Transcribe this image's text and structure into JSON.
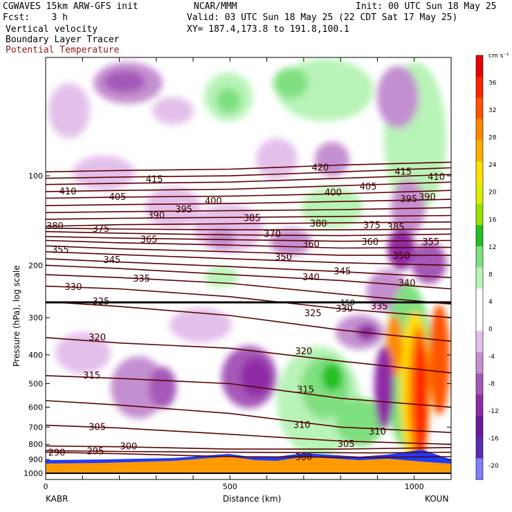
{
  "header": {
    "model": "CGWAVES 15km ARW-GFS init",
    "fcst": "Fcst:    3 h",
    "center": "NCAR/MMM",
    "init": "Init: 00 UTC Sun 18 May 25",
    "valid": "Valid: 03 UTC Sun 18 May 25 (22 CDT Sat 17 May 25)",
    "xy": "XY= 187.4,173.8 to 191.8,100.1",
    "field1": "Vertical velocity",
    "field2": "Boundary Layer Tracer",
    "field3": "Potential Temperature"
  },
  "colorbar": {
    "units": "cm s⁻¹",
    "levels": [
      -20,
      -16,
      -12,
      -8,
      -4,
      0,
      4,
      8,
      12,
      16,
      20,
      24,
      28,
      32,
      36
    ],
    "colors": [
      "#7f7fff",
      "#5a2bb0",
      "#6a1b9a",
      "#8e2aa5",
      "#a458b8",
      "#c48fd0",
      "#e3c0ea",
      "#ffffff",
      "#ffffff",
      "#b8f3b8",
      "#7fe07f",
      "#22c022",
      "#9ae000",
      "#dcee00",
      "#ffe000",
      "#ffb000",
      "#ff8800",
      "#ff5500",
      "#ff2200",
      "#e80000"
    ]
  },
  "colors": {
    "theta_line": "#5a0000",
    "terrain": "#ff9a00",
    "tracer": "#1e3cff",
    "ground": "#000000"
  },
  "chart_data": {
    "type": "heatmap",
    "title": "",
    "xlabel": "Distance (km)",
    "ylabel": "Pressure (hPa), log scale",
    "xlim": [
      0,
      1100
    ],
    "ylim": [
      1050,
      40
    ],
    "y_scale": "log",
    "x_ticks": [
      0,
      500,
      1000
    ],
    "y_ticks": [
      100,
      200,
      300,
      400,
      500,
      600,
      700,
      800,
      900,
      1000
    ],
    "x_endpoint_labels": [
      "KABR",
      "KOUN"
    ],
    "horizontal_marker_label": "150",
    "theta_contours": [
      {
        "label": 290,
        "points": [
          [
            0,
            850
          ],
          [
            200,
            860
          ],
          [
            500,
            880
          ],
          [
            900,
            885
          ],
          [
            1100,
            880
          ]
        ]
      },
      {
        "label": 295,
        "points": [
          [
            0,
            840
          ],
          [
            200,
            845
          ],
          [
            500,
            850
          ],
          [
            900,
            855
          ],
          [
            1100,
            850
          ]
        ]
      },
      {
        "label": 300,
        "points": [
          [
            0,
            810
          ],
          [
            200,
            815
          ],
          [
            500,
            830
          ],
          [
            800,
            830
          ],
          [
            1100,
            820
          ]
        ]
      },
      {
        "label": 305,
        "points": [
          [
            0,
            690
          ],
          [
            200,
            705
          ],
          [
            500,
            740
          ],
          [
            800,
            780
          ],
          [
            1100,
            800
          ]
        ]
      },
      {
        "label": 310,
        "points": [
          [
            0,
            570
          ],
          [
            200,
            590
          ],
          [
            500,
            630
          ],
          [
            800,
            700
          ],
          [
            1100,
            730
          ]
        ]
      },
      {
        "label": 315,
        "points": [
          [
            0,
            470
          ],
          [
            200,
            480
          ],
          [
            500,
            500
          ],
          [
            800,
            560
          ],
          [
            1100,
            600
          ]
        ]
      },
      {
        "label": 320,
        "points": [
          [
            0,
            350
          ],
          [
            200,
            365
          ],
          [
            500,
            380
          ],
          [
            800,
            420
          ],
          [
            1100,
            460
          ]
        ]
      },
      {
        "label": 325,
        "points": [
          [
            0,
            265
          ],
          [
            200,
            275
          ],
          [
            500,
            295
          ],
          [
            800,
            330
          ],
          [
            1100,
            360
          ]
        ]
      },
      {
        "label": 330,
        "points": [
          [
            0,
            235
          ],
          [
            200,
            240
          ],
          [
            500,
            255
          ],
          [
            800,
            280
          ],
          [
            1100,
            300
          ]
        ]
      },
      {
        "label": 335,
        "points": [
          [
            0,
            215
          ],
          [
            200,
            220
          ],
          [
            500,
            230
          ],
          [
            800,
            250
          ],
          [
            1100,
            270
          ]
        ]
      },
      {
        "label": 340,
        "points": [
          [
            0,
            200
          ],
          [
            200,
            205
          ],
          [
            500,
            215
          ],
          [
            800,
            225
          ],
          [
            1100,
            240
          ]
        ]
      },
      {
        "label": 345,
        "points": [
          [
            0,
            190
          ],
          [
            200,
            195
          ],
          [
            500,
            202
          ],
          [
            800,
            210
          ],
          [
            1100,
            220
          ]
        ]
      },
      {
        "label": 350,
        "points": [
          [
            0,
            180
          ],
          [
            200,
            184
          ],
          [
            500,
            190
          ],
          [
            800,
            196
          ],
          [
            1100,
            200
          ]
        ]
      },
      {
        "label": 355,
        "points": [
          [
            0,
            172
          ],
          [
            200,
            176
          ],
          [
            500,
            180
          ],
          [
            800,
            185
          ],
          [
            1100,
            185
          ]
        ]
      },
      {
        "label": 360,
        "points": [
          [
            0,
            165
          ],
          [
            200,
            168
          ],
          [
            500,
            171
          ],
          [
            800,
            175
          ],
          [
            1100,
            174
          ]
        ]
      },
      {
        "label": 365,
        "points": [
          [
            0,
            160
          ],
          [
            200,
            162
          ],
          [
            500,
            164
          ],
          [
            800,
            166
          ],
          [
            1100,
            165
          ]
        ]
      },
      {
        "label": 370,
        "points": [
          [
            0,
            154
          ],
          [
            200,
            156
          ],
          [
            500,
            158
          ],
          [
            800,
            159
          ],
          [
            1100,
            157
          ]
        ]
      },
      {
        "label": 375,
        "points": [
          [
            0,
            150
          ],
          [
            200,
            151
          ],
          [
            500,
            152
          ],
          [
            800,
            152
          ],
          [
            1100,
            151
          ]
        ]
      },
      {
        "label": 380,
        "points": [
          [
            0,
            148
          ],
          [
            200,
            146
          ],
          [
            500,
            145
          ],
          [
            800,
            144
          ],
          [
            1100,
            143
          ]
        ]
      },
      {
        "label": 385,
        "points": [
          [
            0,
            140
          ],
          [
            200,
            139
          ],
          [
            500,
            138
          ],
          [
            800,
            137
          ],
          [
            1100,
            136
          ]
        ]
      },
      {
        "label": 390,
        "points": [
          [
            0,
            133
          ],
          [
            200,
            132
          ],
          [
            500,
            131
          ],
          [
            800,
            130
          ],
          [
            1100,
            128
          ]
        ]
      },
      {
        "label": 395,
        "points": [
          [
            0,
            126
          ],
          [
            200,
            125
          ],
          [
            500,
            124
          ],
          [
            800,
            122
          ],
          [
            1100,
            120
          ]
        ]
      },
      {
        "label": 400,
        "points": [
          [
            0,
            119
          ],
          [
            200,
            118
          ],
          [
            500,
            117
          ],
          [
            800,
            115
          ],
          [
            1100,
            112
          ]
        ]
      },
      {
        "label": 405,
        "points": [
          [
            0,
            113
          ],
          [
            200,
            112
          ],
          [
            500,
            111
          ],
          [
            800,
            108
          ],
          [
            1100,
            105
          ]
        ]
      },
      {
        "label": 410,
        "points": [
          [
            0,
            107
          ],
          [
            200,
            106
          ],
          [
            500,
            105
          ],
          [
            800,
            102
          ],
          [
            1100,
            99
          ]
        ]
      },
      {
        "label": 415,
        "points": [
          [
            0,
            102
          ],
          [
            200,
            101
          ],
          [
            500,
            100
          ],
          [
            800,
            97
          ],
          [
            1100,
            94
          ]
        ]
      },
      {
        "label": 420,
        "points": [
          [
            0,
            97
          ],
          [
            200,
            96
          ],
          [
            500,
            95
          ],
          [
            800,
            92
          ],
          [
            1100,
            90
          ]
        ]
      }
    ],
    "theta_label_positions": [
      {
        "text": "290",
        "x": 30,
        "p": 855
      },
      {
        "text": "295",
        "x": 135,
        "p": 845
      },
      {
        "text": "300",
        "x": 225,
        "p": 815
      },
      {
        "text": "300",
        "x": 700,
        "p": 885
      },
      {
        "text": "305",
        "x": 140,
        "p": 700
      },
      {
        "text": "305",
        "x": 815,
        "p": 800
      },
      {
        "text": "310",
        "x": 695,
        "p": 690
      },
      {
        "text": "310",
        "x": 900,
        "p": 725
      },
      {
        "text": "315",
        "x": 125,
        "p": 470
      },
      {
        "text": "315",
        "x": 705,
        "p": 525
      },
      {
        "text": "320",
        "x": 140,
        "p": 350
      },
      {
        "text": "320",
        "x": 700,
        "p": 390
      },
      {
        "text": "325",
        "x": 150,
        "p": 265
      },
      {
        "text": "325",
        "x": 725,
        "p": 290
      },
      {
        "text": "330",
        "x": 75,
        "p": 237
      },
      {
        "text": "330",
        "x": 810,
        "p": 280
      },
      {
        "text": "335",
        "x": 260,
        "p": 222
      },
      {
        "text": "335",
        "x": 905,
        "p": 275
      },
      {
        "text": "340",
        "x": 720,
        "p": 220
      },
      {
        "text": "340",
        "x": 980,
        "p": 230
      },
      {
        "text": "345",
        "x": 180,
        "p": 192
      },
      {
        "text": "345",
        "x": 805,
        "p": 210
      },
      {
        "text": "350",
        "x": 645,
        "p": 188
      },
      {
        "text": "350",
        "x": 965,
        "p": 186
      },
      {
        "text": "355",
        "x": 40,
        "p": 178
      },
      {
        "text": "355",
        "x": 1045,
        "p": 167
      },
      {
        "text": "360",
        "x": 720,
        "p": 170
      },
      {
        "text": "360",
        "x": 880,
        "p": 167
      },
      {
        "text": "365",
        "x": 280,
        "p": 164
      },
      {
        "text": "370",
        "x": 615,
        "p": 157
      },
      {
        "text": "375",
        "x": 150,
        "p": 151
      },
      {
        "text": "375",
        "x": 885,
        "p": 147
      },
      {
        "text": "380",
        "x": 25,
        "p": 148
      },
      {
        "text": "380",
        "x": 740,
        "p": 145
      },
      {
        "text": "385",
        "x": 560,
        "p": 139
      },
      {
        "text": "385",
        "x": 950,
        "p": 149
      },
      {
        "text": "390",
        "x": 300,
        "p": 136
      },
      {
        "text": "390",
        "x": 1035,
        "p": 118
      },
      {
        "text": "395",
        "x": 375,
        "p": 130
      },
      {
        "text": "395",
        "x": 985,
        "p": 120
      },
      {
        "text": "400",
        "x": 455,
        "p": 122
      },
      {
        "text": "400",
        "x": 780,
        "p": 114
      },
      {
        "text": "405",
        "x": 195,
        "p": 118
      },
      {
        "text": "405",
        "x": 875,
        "p": 109
      },
      {
        "text": "410",
        "x": 60,
        "p": 113
      },
      {
        "text": "410",
        "x": 1060,
        "p": 101
      },
      {
        "text": "415",
        "x": 295,
        "p": 103
      },
      {
        "text": "415",
        "x": 970,
        "p": 97
      },
      {
        "text": "420",
        "x": 745,
        "p": 94
      }
    ]
  }
}
